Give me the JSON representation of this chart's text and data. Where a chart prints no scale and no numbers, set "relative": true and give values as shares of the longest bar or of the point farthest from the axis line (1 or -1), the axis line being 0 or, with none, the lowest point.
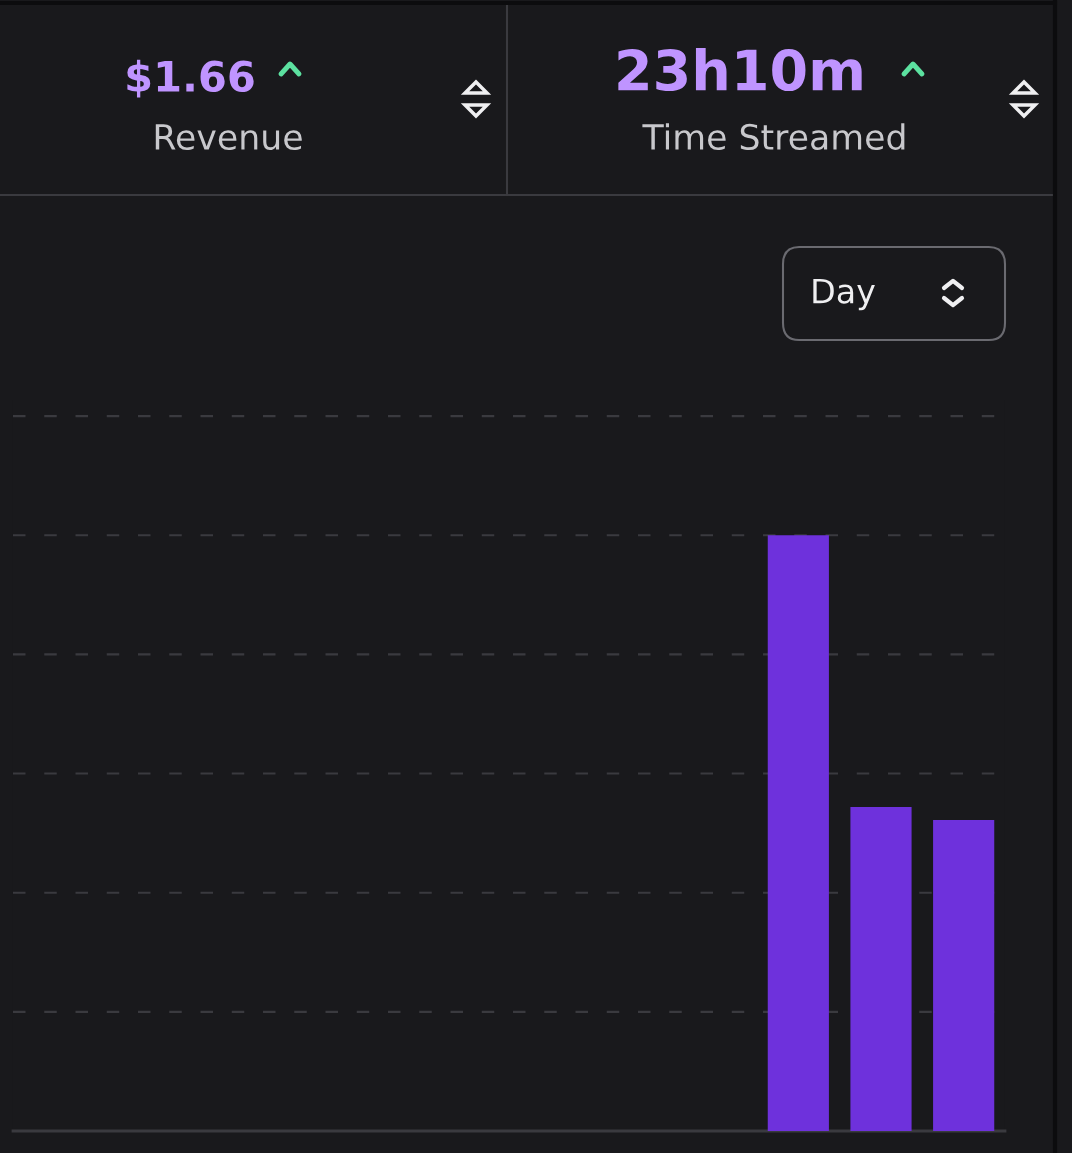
{
  "chart_data": {
    "type": "bar",
    "relative": true,
    "categories": [
      null,
      null,
      null
    ],
    "values": [
      1,
      0.544,
      0.522
    ],
    "color": "#6e31dc",
    "grid": "y",
    "annotations": [
      "$1.66",
      "Revenue",
      "23h10m",
      "Time Streamed",
      "Day"
    ]
  }
}
